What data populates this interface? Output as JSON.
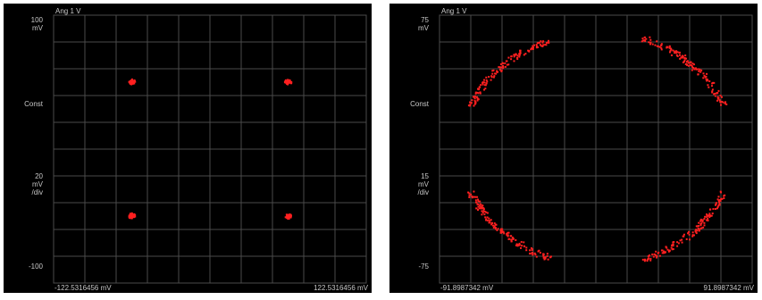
{
  "colors": {
    "background": "#000000",
    "grid": "#4a4a4a",
    "points": "#ff2020",
    "text": "#c8c8c8"
  },
  "chart_data": [
    {
      "type": "scatter",
      "title": "Ang 1  V",
      "y_top_label": [
        "100",
        "mV"
      ],
      "y_bottom_label": "-100",
      "y_mid_label": "Const",
      "y_scale_label": [
        "20",
        "mV",
        "/div"
      ],
      "x_min_label": "-122.5316456 mV",
      "x_max_label": "122.5316456 mV",
      "xlim": [
        -100,
        100
      ],
      "ylim": [
        -100,
        100
      ],
      "grid": true,
      "clusters": [
        {
          "x": -50,
          "y": 50
        },
        {
          "x": 50,
          "y": 50
        },
        {
          "x": -50,
          "y": -50
        },
        {
          "x": 50,
          "y": -50
        }
      ]
    },
    {
      "type": "scatter",
      "title": "Ang 1  V",
      "y_top_label": [
        "75",
        "mV"
      ],
      "y_bottom_label": "-75",
      "y_mid_label": "Const",
      "y_scale_label": [
        "15",
        "mV",
        "/div"
      ],
      "x_min_label": "-91.8987342 mV",
      "x_max_label": "91.8987342 mV",
      "xlim": [
        -75,
        75
      ],
      "ylim": [
        -75,
        75
      ],
      "grid": true,
      "arcs": [
        {
          "x_start": -60,
          "y_start": 24,
          "x_end": -22,
          "y_end": 62
        },
        {
          "x_start": 22,
          "y_start": 62,
          "x_end": 60,
          "y_end": 24
        },
        {
          "x_start": -60,
          "y_start": -24,
          "x_end": -22,
          "y_end": -62
        },
        {
          "x_start": 22,
          "y_start": -62,
          "x_end": 60,
          "y_end": -24
        }
      ]
    }
  ]
}
